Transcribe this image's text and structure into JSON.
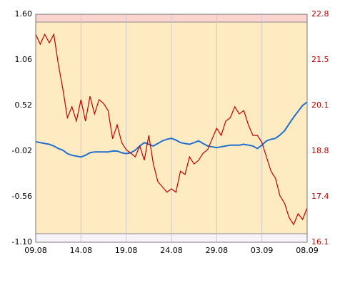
{
  "chart_data": {
    "type": "line",
    "xlim": [
      0,
      30
    ],
    "xticks": [
      {
        "value": 0,
        "label": "09.08"
      },
      {
        "value": 5,
        "label": "14.08"
      },
      {
        "value": 10,
        "label": "19.08"
      },
      {
        "value": 15,
        "label": "24.08"
      },
      {
        "value": 20,
        "label": "29.08"
      },
      {
        "value": 25,
        "label": "03.09"
      },
      {
        "value": 30,
        "label": "08.09"
      }
    ],
    "ylim": [
      -1.1,
      1.6
    ],
    "yticks": [
      {
        "value": -1.1,
        "label": "-1.10"
      },
      -0.56,
      -0.02,
      0.52,
      1.06,
      {
        "value": 1.6,
        "label": "1.60"
      }
    ],
    "y2lim": [
      16.1,
      22.8
    ],
    "y2ticks": [
      16.1,
      {
        "value": 17.44,
        "label": "17.4"
      },
      {
        "value": 18.78,
        "label": "18.8"
      },
      {
        "value": 20.12,
        "label": "20.1"
      },
      {
        "value": 21.46,
        "label": "21.5"
      },
      22.8
    ],
    "grid": true,
    "x": [
      0,
      0.5,
      1,
      1.5,
      2,
      2.5,
      3,
      3.5,
      4,
      4.5,
      5,
      5.5,
      6,
      6.5,
      7,
      7.5,
      8,
      8.5,
      9,
      9.5,
      10,
      10.5,
      11,
      11.5,
      12,
      12.5,
      13,
      13.5,
      14,
      14.5,
      15,
      15.5,
      16,
      16.5,
      17,
      17.5,
      18,
      18.5,
      19,
      19.5,
      20,
      20.5,
      21,
      21.5,
      22,
      22.5,
      23,
      23.5,
      24,
      24.5,
      25,
      25.5,
      26,
      26.5,
      27,
      27.5,
      28,
      28.5,
      29,
      29.5,
      30
    ],
    "series": [
      {
        "color": "#1f6fd0",
        "values": [
          0.09,
          0.08,
          0.07,
          0.06,
          0.04,
          0.01,
          -0.01,
          -0.05,
          -0.07,
          -0.08,
          -0.09,
          -0.07,
          -0.04,
          -0.03,
          -0.03,
          -0.03,
          -0.03,
          -0.02,
          -0.02,
          -0.04,
          -0.05,
          -0.04,
          -0.01,
          0.04,
          0.08,
          0.06,
          0.04,
          0.07,
          0.1,
          0.12,
          0.13,
          0.11,
          0.08,
          0.07,
          0.06,
          0.08,
          0.1,
          0.07,
          0.04,
          0.03,
          0.02,
          0.03,
          0.04,
          0.05,
          0.05,
          0.05,
          0.06,
          0.05,
          0.04,
          0.01,
          0.05,
          0.1,
          0.12,
          0.13,
          0.17,
          0.22,
          0.3,
          0.38,
          0.45,
          0.52,
          0.56
        ]
      },
      {
        "color": "#c00000",
        "axis": "y2",
        "values": [
          22.21,
          21.92,
          22.21,
          21.96,
          22.21,
          21.33,
          20.6,
          19.76,
          20.08,
          19.66,
          20.29,
          19.66,
          20.39,
          19.87,
          20.29,
          20.18,
          19.97,
          19.14,
          19.55,
          19.03,
          18.82,
          18.72,
          18.61,
          18.93,
          18.51,
          19.24,
          18.4,
          17.88,
          17.73,
          17.57,
          17.67,
          17.57,
          18.19,
          18.09,
          18.61,
          18.4,
          18.51,
          18.72,
          18.82,
          19.14,
          19.45,
          19.24,
          19.66,
          19.76,
          20.08,
          19.87,
          19.97,
          19.55,
          19.24,
          19.24,
          19.03,
          18.61,
          18.19,
          17.98,
          17.46,
          17.25,
          16.83,
          16.62,
          16.94,
          16.77,
          17.11
        ]
      }
    ]
  }
}
